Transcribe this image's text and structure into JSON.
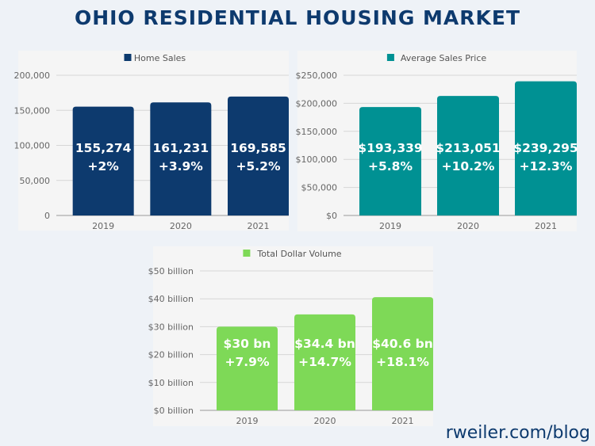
{
  "title": "OHIO RESIDENTIAL HOUSING MARKET",
  "footer": "rweiler.com/blog",
  "chart_data": [
    {
      "type": "bar",
      "categories": [
        "2019",
        "2020",
        "2021"
      ],
      "series": [
        {
          "name": "Home Sales",
          "values": [
            155274,
            161231,
            169585
          ],
          "color": "#0d3a6e"
        }
      ],
      "data_labels": [
        [
          "155,274",
          "+2%"
        ],
        [
          "161,231",
          "+3.9%"
        ],
        [
          "169,585",
          "+5.2%"
        ]
      ],
      "yticks": [
        0,
        50000,
        100000,
        150000,
        200000
      ],
      "ytick_labels": [
        "0",
        "50,000",
        "100,000",
        "150,000",
        "200,000"
      ],
      "ylim": [
        0,
        200000
      ],
      "grid": true,
      "legend": "top"
    },
    {
      "type": "bar",
      "categories": [
        "2019",
        "2020",
        "2021"
      ],
      "series": [
        {
          "name": "Average Sales Price",
          "values": [
            193339,
            213051,
            239295
          ],
          "color": "#009193"
        }
      ],
      "data_labels": [
        [
          "$193,339",
          "+5.8%"
        ],
        [
          "$213,051",
          "+10.2%"
        ],
        [
          "$239,295",
          "+12.3%"
        ]
      ],
      "yticks": [
        0,
        50000,
        100000,
        150000,
        200000,
        250000
      ],
      "ytick_labels": [
        "$0",
        "$50,000",
        "$100,000",
        "$150,000",
        "$200,000",
        "$250,000"
      ],
      "ylim": [
        0,
        250000
      ],
      "grid": true,
      "legend": "top"
    },
    {
      "type": "bar",
      "categories": [
        "2019",
        "2020",
        "2021"
      ],
      "series": [
        {
          "name": "Total Dollar Volume",
          "values": [
            30,
            34.4,
            40.6
          ],
          "color": "#7ed957"
        }
      ],
      "data_labels": [
        [
          "$30 bn",
          "+7.9%"
        ],
        [
          "$34.4 bn",
          "+14.7%"
        ],
        [
          "$40.6 bn",
          "+18.1%"
        ]
      ],
      "yticks": [
        0,
        10,
        20,
        30,
        40,
        50
      ],
      "ytick_labels": [
        "$0 billion",
        "$10 billion",
        "$20 billion",
        "$30 billion",
        "$40 billion",
        "$50 billion"
      ],
      "ylim": [
        0,
        50
      ],
      "grid": true,
      "legend": "top"
    }
  ]
}
